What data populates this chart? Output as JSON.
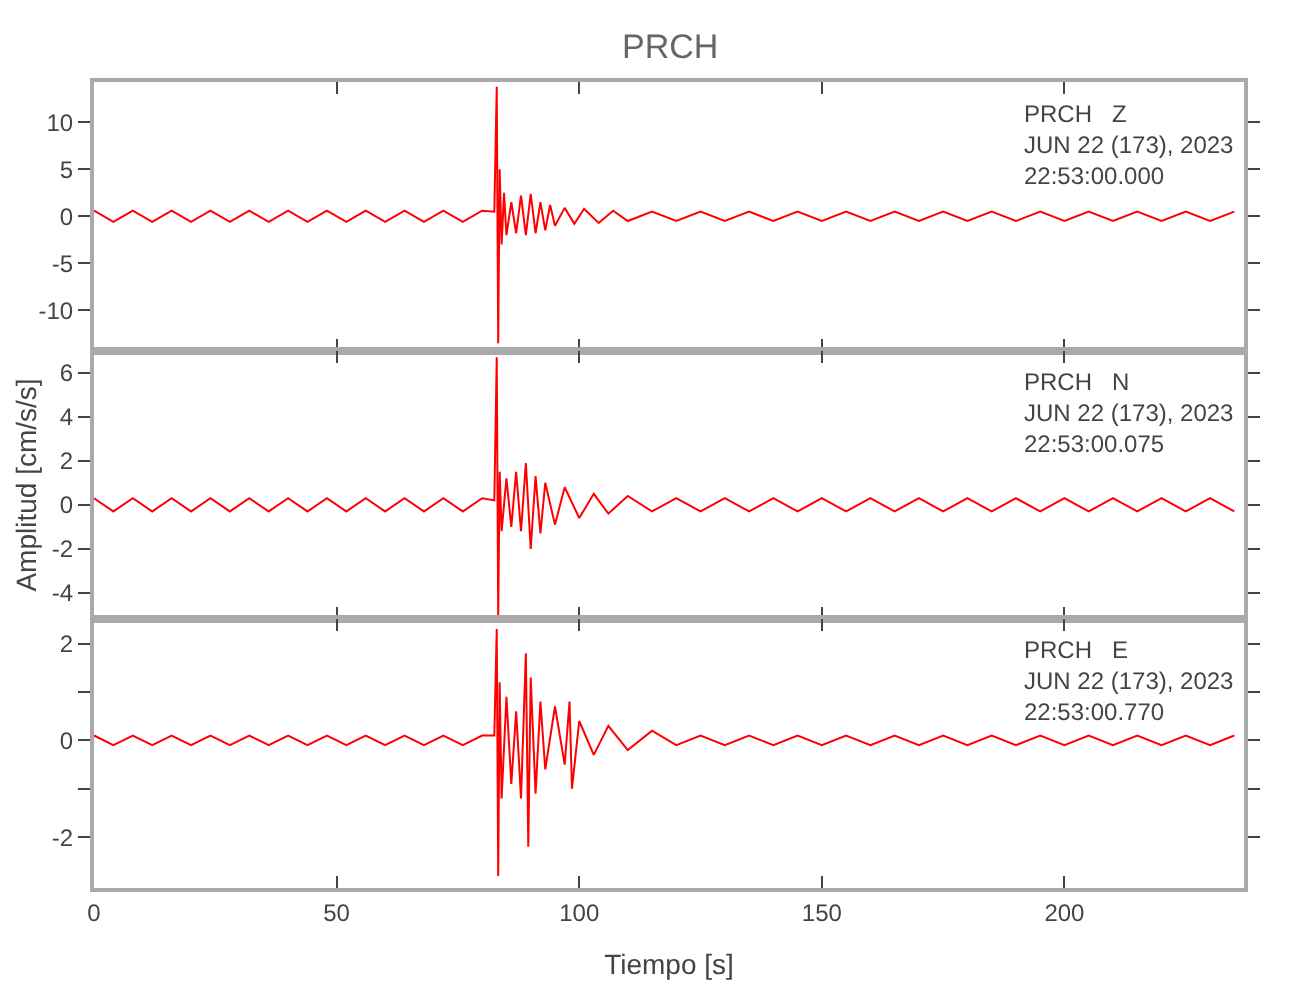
{
  "chart_data": [
    {
      "type": "line",
      "title": "PRCH",
      "tick_labels": "y",
      "annotations": [
        "PRCH   Z\nJUN 22 (173), 2023\n22:53:00.000"
      ],
      "xlim": [
        0,
        237
      ],
      "xticks": [
        0,
        50,
        100,
        150,
        200
      ],
      "ylim": [
        -14.3,
        14.3
      ],
      "yticks": [
        -10,
        -5,
        0,
        5,
        10
      ],
      "series": [
        {
          "color": "#ff0000",
          "x": [
            0,
            4,
            8,
            12,
            16,
            20,
            24,
            28,
            32,
            36,
            40,
            44,
            48,
            52,
            56,
            60,
            64,
            68,
            72,
            76,
            80,
            82.5,
            83,
            83.3,
            83.6,
            84,
            84.5,
            85,
            86,
            87,
            88,
            89,
            90,
            91,
            92,
            93,
            94,
            95,
            97,
            99,
            101,
            104,
            107,
            110,
            115,
            120,
            125,
            130,
            135,
            140,
            145,
            150,
            155,
            160,
            165,
            170,
            175,
            180,
            185,
            190,
            195,
            200,
            205,
            210,
            215,
            220,
            225,
            230,
            235
          ],
          "values": [
            0.6,
            -0.6,
            0.6,
            -0.6,
            0.6,
            -0.6,
            0.6,
            -0.6,
            0.6,
            -0.6,
            0.6,
            -0.6,
            0.6,
            -0.6,
            0.6,
            -0.6,
            0.6,
            -0.6,
            0.6,
            -0.6,
            0.6,
            0.5,
            13.8,
            -13.5,
            5,
            -3,
            2.5,
            -2,
            1.5,
            -1.8,
            2.2,
            -2,
            2.4,
            -1.8,
            1.5,
            -1.5,
            1.2,
            -1,
            0.9,
            -0.8,
            0.8,
            -0.7,
            0.6,
            -0.5,
            0.5,
            -0.5,
            0.5,
            -0.5,
            0.5,
            -0.5,
            0.5,
            -0.5,
            0.5,
            -0.5,
            0.5,
            -0.5,
            0.5,
            -0.5,
            0.5,
            -0.5,
            0.5,
            -0.5,
            0.5,
            -0.5,
            0.5,
            -0.5,
            0.5,
            -0.5,
            0.5
          ]
        }
      ]
    },
    {
      "type": "line",
      "ylabel": "Amplitud [cm/s/s]",
      "tick_labels": "y",
      "annotations": [
        "PRCH   N\nJUN 22 (173), 2023\n22:53:00.075"
      ],
      "xlim": [
        0,
        237
      ],
      "xticks": [
        0,
        50,
        100,
        150,
        200
      ],
      "ylim": [
        -5.2,
        7
      ],
      "yticks": [
        -4,
        -2,
        0,
        2,
        4,
        6
      ],
      "series": [
        {
          "color": "#ff0000",
          "x": [
            0,
            4,
            8,
            12,
            16,
            20,
            24,
            28,
            32,
            36,
            40,
            44,
            48,
            52,
            56,
            60,
            64,
            68,
            72,
            76,
            80,
            82.5,
            83,
            83.3,
            83.6,
            84,
            85,
            86,
            87,
            88,
            89,
            90,
            91,
            92,
            93,
            95,
            97,
            100,
            103,
            106,
            110,
            115,
            120,
            125,
            130,
            135,
            140,
            145,
            150,
            155,
            160,
            165,
            170,
            175,
            180,
            185,
            190,
            195,
            200,
            205,
            210,
            215,
            220,
            225,
            230,
            235
          ],
          "values": [
            0.3,
            -0.3,
            0.3,
            -0.3,
            0.3,
            -0.3,
            0.3,
            -0.3,
            0.3,
            -0.3,
            0.3,
            -0.3,
            0.3,
            -0.3,
            0.3,
            -0.3,
            0.3,
            -0.3,
            0.3,
            -0.3,
            0.3,
            0.2,
            6.7,
            -5,
            1.5,
            -1.2,
            1.2,
            -1,
            1.5,
            -1.2,
            1.9,
            -2,
            1.3,
            -1.3,
            1,
            -0.9,
            0.8,
            -0.6,
            0.5,
            -0.4,
            0.4,
            -0.3,
            0.3,
            -0.3,
            0.3,
            -0.3,
            0.3,
            -0.3,
            0.3,
            -0.3,
            0.3,
            -0.3,
            0.3,
            -0.3,
            0.3,
            -0.3,
            0.3,
            -0.3,
            0.3,
            -0.3,
            0.3,
            -0.3,
            0.3,
            -0.3,
            0.3,
            -0.3
          ]
        }
      ]
    },
    {
      "type": "line",
      "xlabel": "Tiempo [s]",
      "annotations": [
        "PRCH   E\nJUN 22 (173), 2023\n22:53:00.770"
      ],
      "xlim": [
        0,
        237
      ],
      "xticks": [
        0,
        50,
        100,
        150,
        200
      ],
      "ylim": [
        -3.05,
        2.5
      ],
      "yticks": [
        -2,
        {
          "value": -1,
          "label": null
        },
        0,
        {
          "value": 1,
          "label": null
        },
        2
      ],
      "series": [
        {
          "color": "#ff0000",
          "x": [
            0,
            4,
            8,
            12,
            16,
            20,
            24,
            28,
            32,
            36,
            40,
            44,
            48,
            52,
            56,
            60,
            64,
            68,
            72,
            76,
            80,
            82.5,
            83,
            83.3,
            83.6,
            84,
            85,
            86,
            87,
            88,
            89,
            89.5,
            90,
            91,
            92,
            93,
            95,
            97,
            98,
            98.5,
            100,
            103,
            106,
            110,
            115,
            120,
            125,
            130,
            135,
            140,
            145,
            150,
            155,
            160,
            165,
            170,
            175,
            180,
            185,
            190,
            195,
            200,
            205,
            210,
            215,
            220,
            225,
            230,
            235
          ],
          "values": [
            0.1,
            -0.1,
            0.1,
            -0.1,
            0.1,
            -0.1,
            0.1,
            -0.1,
            0.1,
            -0.1,
            0.1,
            -0.1,
            0.1,
            -0.1,
            0.1,
            -0.1,
            0.1,
            -0.1,
            0.1,
            -0.1,
            0.1,
            0.1,
            2.3,
            -2.8,
            1.2,
            -1.2,
            0.9,
            -0.9,
            0.6,
            -1.2,
            1.8,
            -2.2,
            1.3,
            -1.1,
            0.8,
            -0.6,
            0.7,
            -0.5,
            0.8,
            -1,
            0.4,
            -0.3,
            0.3,
            -0.2,
            0.2,
            -0.1,
            0.1,
            -0.1,
            0.1,
            -0.1,
            0.1,
            -0.1,
            0.1,
            -0.1,
            0.1,
            -0.1,
            0.1,
            -0.1,
            0.1,
            -0.1,
            0.1,
            -0.1,
            0.1,
            -0.1,
            0.1,
            -0.1,
            0.1,
            -0.1,
            0.1
          ]
        }
      ]
    }
  ]
}
